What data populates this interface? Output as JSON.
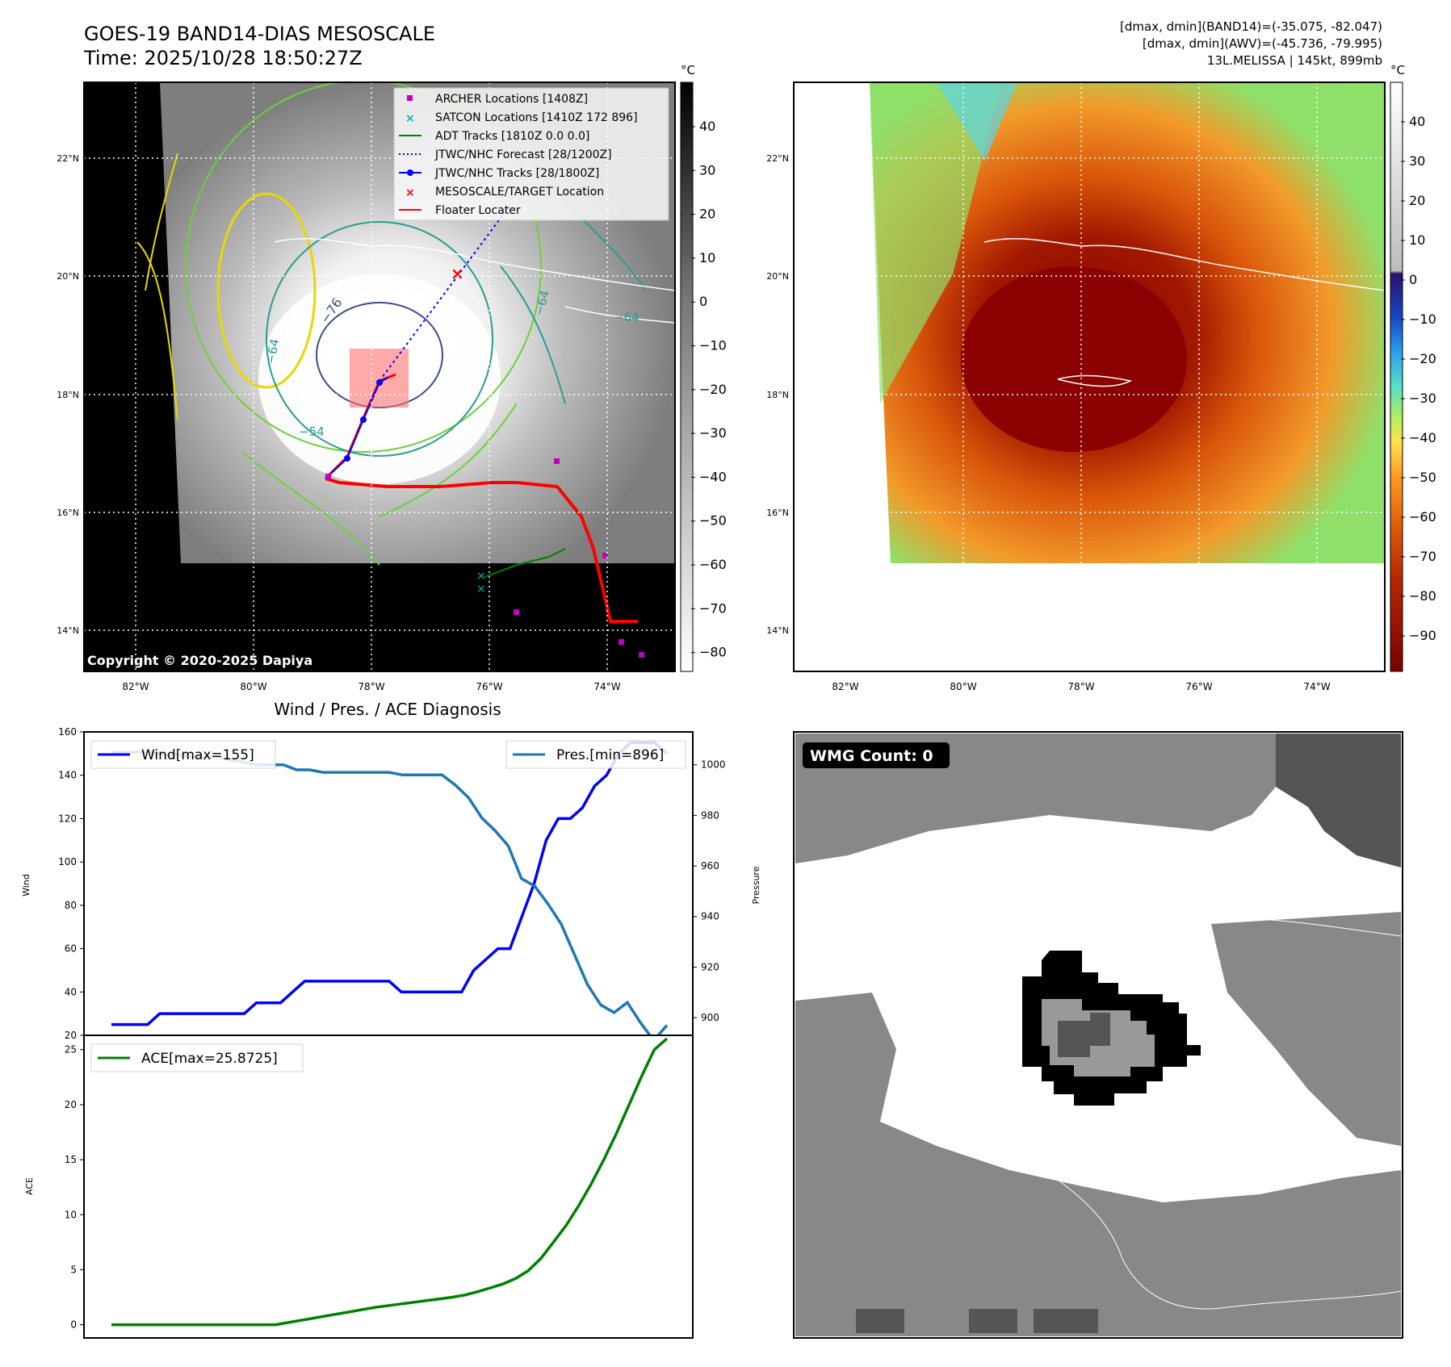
{
  "header": {
    "title_line1": "GOES-19 BAND14-DIAS MESOSCALE",
    "title_line2": "Time: 2025/10/28 18:50:27Z",
    "info_line1": "[dmax, dmin](BAND14)=(-35.075, -82.047)",
    "info_line2": "[dmax, dmin](AWV)=(-45.736, -79.995)",
    "info_line3": "13L.MELISSA | 145kt, 899mb"
  },
  "map_left": {
    "copyright": "Copyright © 2020-2025 Dapiya",
    "lon_ticks": [
      "82°W",
      "80°W",
      "78°W",
      "76°W",
      "74°W"
    ],
    "lat_ticks": [
      "22°N",
      "20°N",
      "18°N",
      "16°N",
      "14°N"
    ],
    "colorbar_unit": "°C",
    "colorbar_ticks": [
      "40",
      "30",
      "20",
      "10",
      "0",
      "−10",
      "−20",
      "−30",
      "−40",
      "−50",
      "−60",
      "−70",
      "−80"
    ],
    "contour_labels": [
      "−76",
      "−64",
      "−64",
      "−64",
      "−54"
    ],
    "legend": [
      {
        "label": "ARCHER Locations [1408Z]",
        "color": "#c000c0",
        "marker": "square"
      },
      {
        "label": "SATCON Locations [1410Z 172 896]",
        "color": "#00b4b4",
        "marker": "x"
      },
      {
        "label": "ADT Tracks [1810Z 0.0 0.0]",
        "color": "#008000",
        "marker": "line"
      },
      {
        "label": "JTWC/NHC Forecast [28/1200Z]",
        "color": "#0000ff",
        "marker": "dotted"
      },
      {
        "label": "JTWC/NHC Tracks [28/1800Z]",
        "color": "#0000ff",
        "marker": "line-dot"
      },
      {
        "label": "MESOSCALE/TARGET Location",
        "color": "#ff0000",
        "marker": "x"
      },
      {
        "label": "Floater Locater",
        "color": "#ff0000",
        "marker": "line"
      }
    ]
  },
  "map_right": {
    "lon_ticks": [
      "82°W",
      "80°W",
      "78°W",
      "76°W",
      "74°W"
    ],
    "lat_ticks": [
      "22°N",
      "20°N",
      "18°N",
      "16°N",
      "14°N"
    ],
    "colorbar_unit": "°C",
    "colorbar_ticks": [
      "40",
      "30",
      "20",
      "10",
      "0",
      "−10",
      "−20",
      "−30",
      "−40",
      "−50",
      "−60",
      "−70",
      "−80",
      "−90"
    ]
  },
  "diagnosis": {
    "title": "Wind / Pres. / ACE Diagnosis",
    "wind_axis_label": "Wind",
    "pressure_axis_label": "Pressure",
    "ace_axis_label": "ACE",
    "wind_legend": "Wind[max=155]",
    "pres_legend": "Pres.[min=896]",
    "ace_legend": "ACE[max=25.8725]",
    "wind_ticks": [
      "160",
      "140",
      "120",
      "100",
      "80",
      "60",
      "40",
      "20"
    ],
    "pres_ticks": [
      "1000",
      "980",
      "960",
      "940",
      "920",
      "900"
    ],
    "ace_ticks": [
      "25",
      "20",
      "15",
      "10",
      "5",
      "0"
    ]
  },
  "wmg": {
    "count_label": "WMG Count: 0"
  },
  "chart_data": [
    {
      "type": "line",
      "title": "Wind / Pres. / ACE Diagnosis",
      "ylabel": "Wind",
      "ylim": [
        20,
        160
      ],
      "series": [
        {
          "name": "Wind[max=155]",
          "color": "#0000ff",
          "values": [
            25,
            25,
            25,
            25,
            30,
            30,
            30,
            30,
            30,
            30,
            30,
            30,
            35,
            35,
            35,
            40,
            45,
            45,
            45,
            45,
            45,
            45,
            45,
            45,
            40,
            40,
            40,
            40,
            40,
            40,
            50,
            55,
            60,
            60,
            75,
            90,
            110,
            120,
            120,
            125,
            135,
            140,
            150,
            155,
            155,
            155,
            150
          ]
        }
      ]
    },
    {
      "type": "line",
      "ylabel": "Pressure",
      "ylim": [
        893,
        1013
      ],
      "series": [
        {
          "name": "Pres.[min=896]",
          "color": "#1f77b4",
          "values": [
            1005,
            1005,
            1005,
            1005,
            1004,
            1004,
            1003,
            1003,
            1003,
            1002,
            1001,
            1000,
            1000,
            1000,
            998,
            998,
            997,
            997,
            997,
            997,
            997,
            997,
            996,
            996,
            996,
            996,
            992,
            987,
            979,
            974,
            968,
            955,
            952,
            945,
            937,
            925,
            913,
            905,
            902,
            906,
            898,
            891,
            897
          ]
        }
      ]
    },
    {
      "type": "line",
      "ylabel": "ACE",
      "ylim": [
        -1.2,
        26.3
      ],
      "series": [
        {
          "name": "ACE[max=25.8725]",
          "color": "#008000",
          "values": [
            0,
            0,
            0,
            0,
            0,
            0,
            0,
            0,
            0,
            0,
            0,
            0,
            0,
            0,
            0.2,
            0.4,
            0.6,
            0.8,
            1.0,
            1.2,
            1.4,
            1.6,
            1.75,
            1.9,
            2.05,
            2.2,
            2.35,
            2.5,
            2.7,
            3.0,
            3.35,
            3.7,
            4.2,
            4.9,
            6.0,
            7.5,
            9.0,
            10.8,
            12.8,
            15.0,
            17.4,
            20.0,
            22.6,
            25.0,
            26.0
          ]
        }
      ]
    }
  ]
}
